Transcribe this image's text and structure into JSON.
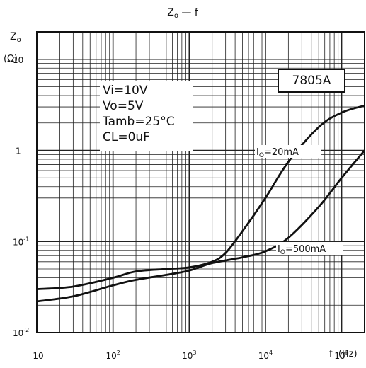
{
  "chart_data": {
    "type": "line",
    "title": "Zo — f",
    "title_main": "Z",
    "title_sub": "o",
    "title_rest": " — f",
    "ylabel_main": "Z",
    "ylabel_sub": "o",
    "yunit": "(Ω)",
    "xlabel": "f  (Hz)",
    "x_scale": "log",
    "y_scale": "log",
    "xlim": [
      10,
      200000
    ],
    "ylim": [
      0.01,
      20
    ],
    "grid": true,
    "x_ticks": [
      {
        "value": 10,
        "base": "10",
        "exp": ""
      },
      {
        "value": 100,
        "base": "10",
        "exp": "2"
      },
      {
        "value": 1000,
        "base": "10",
        "exp": "3"
      },
      {
        "value": 10000,
        "base": "10",
        "exp": "4"
      },
      {
        "value": 100000,
        "base": "10",
        "exp": "5"
      }
    ],
    "y_ticks": [
      {
        "value": 10,
        "base": "10",
        "exp": ""
      },
      {
        "value": 1,
        "base": "1",
        "exp": ""
      },
      {
        "value": 0.1,
        "base": "10",
        "exp": "-1"
      },
      {
        "value": 0.01,
        "base": "10",
        "exp": "-2"
      }
    ],
    "series": [
      {
        "name": "Io=20mA",
        "label_main": "I",
        "label_sub": "O",
        "label_rest": "=20mA",
        "x": [
          10,
          30,
          100,
          200,
          500,
          1000,
          2000,
          3000,
          5000,
          10000,
          20000,
          50000,
          100000,
          200000
        ],
        "y": [
          0.03,
          0.032,
          0.04,
          0.047,
          0.05,
          0.052,
          0.06,
          0.075,
          0.13,
          0.3,
          0.75,
          1.8,
          2.6,
          3.1
        ]
      },
      {
        "name": "Io=500mA",
        "label_main": "I",
        "label_sub": "O",
        "label_rest": "=500mA",
        "x": [
          10,
          30,
          100,
          200,
          500,
          1000,
          2000,
          5000,
          10000,
          20000,
          50000,
          100000,
          200000
        ],
        "y": [
          0.022,
          0.025,
          0.033,
          0.038,
          0.043,
          0.048,
          0.058,
          0.067,
          0.078,
          0.11,
          0.24,
          0.5,
          1.0
        ]
      }
    ],
    "conditions": [
      "Vi=10V",
      "Vo=5V",
      "Tamb=25°C",
      "CL=0uF"
    ],
    "model": "7805A"
  }
}
